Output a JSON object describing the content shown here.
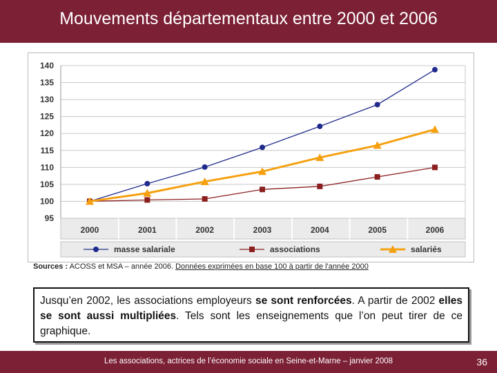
{
  "title": "Mouvements départementaux entre 2000 et 2006",
  "chart_data": {
    "type": "line",
    "categories": [
      "2000",
      "2001",
      "2002",
      "2003",
      "2004",
      "2005",
      "2006"
    ],
    "series": [
      {
        "name": "masse salariale",
        "values": [
          100,
          105.2,
          110.1,
          115.9,
          122.1,
          128.5,
          138.8
        ],
        "color": "#1f2a8c",
        "marker": "circle"
      },
      {
        "name": "associations",
        "values": [
          100,
          100.4,
          100.7,
          103.5,
          104.4,
          107.2,
          110.0
        ],
        "color": "#8b1f1f",
        "marker": "square"
      },
      {
        "name": "salariés",
        "values": [
          100,
          102.4,
          105.8,
          108.8,
          112.9,
          116.5,
          121.2
        ],
        "color": "#f5a010",
        "marker": "triangle"
      }
    ],
    "ylim": [
      95,
      140
    ],
    "yticks": [
      95,
      100,
      105,
      110,
      115,
      120,
      125,
      130,
      135,
      140
    ],
    "grid": true,
    "legend": "bottom"
  },
  "sources": {
    "label": "Sources :",
    "text1": " ACOSS et MSA – année 2006. ",
    "text2": "Données exprimées en base 100 à partir de l'année 2000"
  },
  "callout": {
    "p1": "Jusqu’en 2002, les associations employeurs ",
    "b1": "se sont renforcées",
    "p2": ". A partir de 2002 ",
    "b2": "elles se sont aussi multipliées",
    "p3": ". Tels sont les enseignements que l’on peut tirer de ce graphique."
  },
  "footer": {
    "text": "Les associations, actrices de l’économie sociale en Seine-et-Marne – janvier 2008",
    "page": "36"
  }
}
